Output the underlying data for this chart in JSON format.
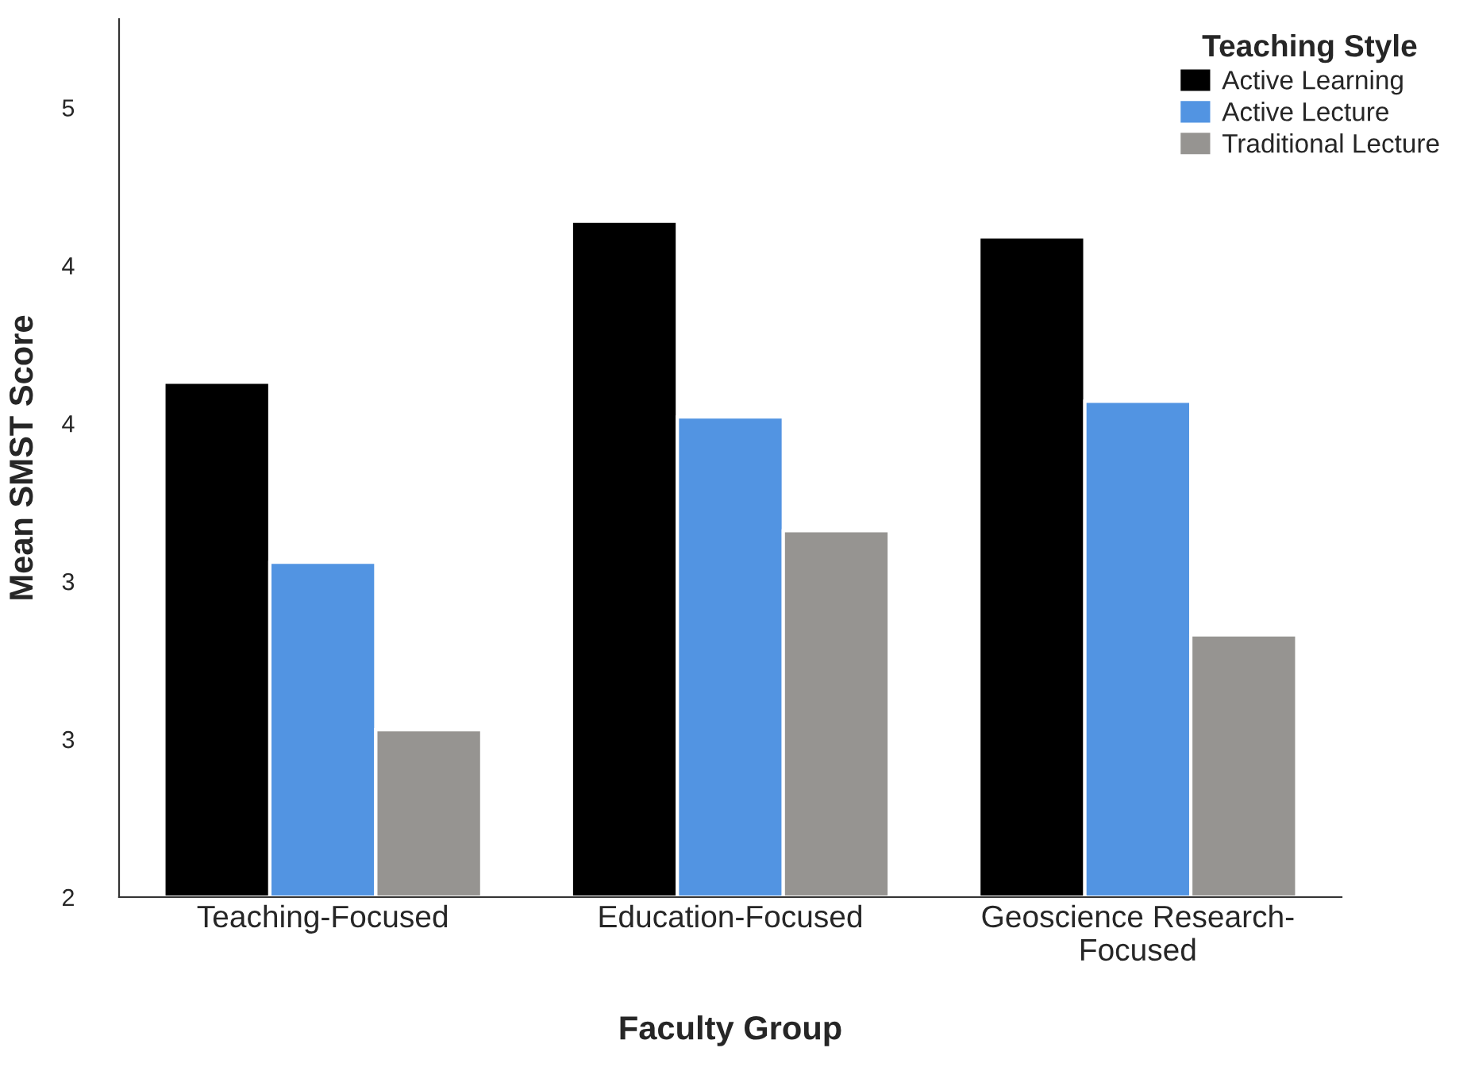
{
  "chart_data": {
    "type": "bar",
    "xlabel": "Faculty Group",
    "ylabel": "Mean SMST Score",
    "legend_title": "Teaching Style",
    "categories": [
      "Teaching-Focused",
      "Education-Focused",
      "Geoscience Research-\nFocused"
    ],
    "series": [
      {
        "name": "Active Learning",
        "color": "#000000",
        "values": [
          3.63,
          4.14,
          4.09
        ]
      },
      {
        "name": "Active Lecture",
        "color": "#5294e2",
        "values": [
          3.06,
          3.52,
          3.57
        ]
      },
      {
        "name": "Traditional Lecture",
        "color": "#969491",
        "values": [
          2.53,
          3.16,
          2.83
        ]
      }
    ],
    "ylim": [
      2,
      4.78
    ],
    "yticks": [
      2,
      {
        "value": 2.5,
        "label": "3"
      },
      3,
      {
        "value": 3.5,
        "label": "4"
      },
      4,
      {
        "value": 4.5,
        "label": "5"
      }
    ],
    "grid": false,
    "legend": "top right"
  }
}
